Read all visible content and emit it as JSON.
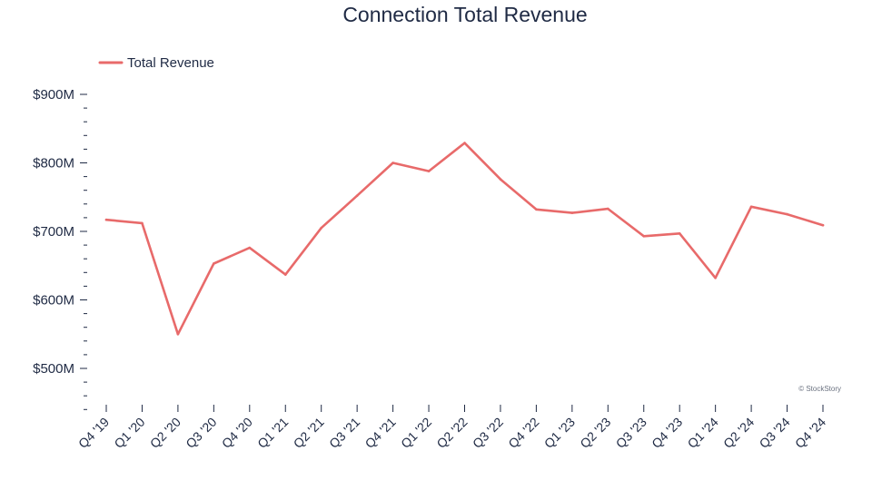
{
  "chart_data": {
    "type": "line",
    "title": "Connection Total Revenue",
    "xlabel": "",
    "ylabel": "",
    "categories": [
      "Q4 '19",
      "Q1 '20",
      "Q2 '20",
      "Q3 '20",
      "Q4 '20",
      "Q1 '21",
      "Q2 '21",
      "Q3 '21",
      "Q4 '21",
      "Q1 '22",
      "Q2 '22",
      "Q3 '22",
      "Q4 '22",
      "Q1 '23",
      "Q2 '23",
      "Q3 '23",
      "Q4 '23",
      "Q1 '24",
      "Q2 '24",
      "Q3 '24",
      "Q4 '24"
    ],
    "series": [
      {
        "name": "Total Revenue",
        "color": "#e86a6a",
        "values": [
          717,
          712,
          550,
          653,
          676,
          637,
          705,
          752,
          800,
          788,
          829,
          776,
          732,
          727,
          733,
          693,
          697,
          632,
          736,
          725,
          709
        ]
      }
    ],
    "ylim": [
      450,
      920
    ],
    "yticks": [
      {
        "value": 500,
        "label": "$500M"
      },
      {
        "value": 600,
        "label": "$600M"
      },
      {
        "value": 700,
        "label": "$700M"
      },
      {
        "value": 800,
        "label": "$800M"
      },
      {
        "value": 900,
        "label": "$900M"
      }
    ],
    "y_minor_step": 20,
    "grid": false,
    "legend_position": "top-left"
  },
  "watermark": "© StockStory"
}
